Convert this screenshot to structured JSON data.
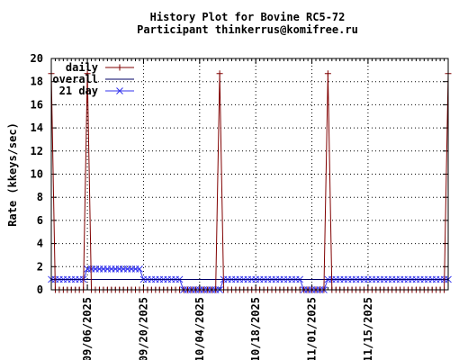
{
  "chart_data": {
    "type": "line",
    "title": "History Plot for Bovine RC5-72",
    "subtitle": "Participant thinkerrus@komifree.ru",
    "ylabel": "Rate (kkeys/sec)",
    "xlabel": "",
    "x_scale": "date",
    "xlim": [
      "2025-08-28",
      "2025-12-05"
    ],
    "ylim": [
      0,
      20
    ],
    "grid": true,
    "grid_style": "dotted",
    "legend_position": "top-left",
    "y_ticks": [
      0,
      2,
      4,
      6,
      8,
      10,
      12,
      14,
      16,
      18,
      20
    ],
    "x_ticks": [
      "09/06/2025",
      "09/20/2025",
      "10/04/2025",
      "10/18/2025",
      "11/01/2025",
      "11/15/2025"
    ],
    "x_tick_dates": [
      "2025-09-06",
      "2025-09-20",
      "2025-10-04",
      "2025-10-18",
      "2025-11-01",
      "2025-11-15"
    ],
    "series": [
      {
        "name": "daily",
        "color": "#800000",
        "marker": "plus",
        "x": [
          "2025-08-28",
          "2025-08-29",
          "2025-08-30",
          "2025-08-31",
          "2025-09-01",
          "2025-09-02",
          "2025-09-03",
          "2025-09-04",
          "2025-09-05",
          "2025-09-06",
          "2025-09-07",
          "2025-09-08",
          "2025-09-09",
          "2025-09-10",
          "2025-09-11",
          "2025-09-12",
          "2025-09-13",
          "2025-09-14",
          "2025-09-15",
          "2025-09-16",
          "2025-09-17",
          "2025-09-18",
          "2025-09-19",
          "2025-09-20",
          "2025-09-21",
          "2025-09-22",
          "2025-09-23",
          "2025-09-24",
          "2025-09-25",
          "2025-09-26",
          "2025-09-27",
          "2025-09-28",
          "2025-09-29",
          "2025-09-30",
          "2025-10-01",
          "2025-10-02",
          "2025-10-03",
          "2025-10-04",
          "2025-10-05",
          "2025-10-06",
          "2025-10-07",
          "2025-10-08",
          "2025-10-09",
          "2025-10-10",
          "2025-10-11",
          "2025-10-12",
          "2025-10-13",
          "2025-10-14",
          "2025-10-15",
          "2025-10-16",
          "2025-10-17",
          "2025-10-18",
          "2025-10-19",
          "2025-10-20",
          "2025-10-21",
          "2025-10-22",
          "2025-10-23",
          "2025-10-24",
          "2025-10-25",
          "2025-10-26",
          "2025-10-27",
          "2025-10-28",
          "2025-10-29",
          "2025-10-30",
          "2025-10-31",
          "2025-11-01",
          "2025-11-02",
          "2025-11-03",
          "2025-11-04",
          "2025-11-05",
          "2025-11-06",
          "2025-11-07",
          "2025-11-08",
          "2025-11-09",
          "2025-11-10",
          "2025-11-11",
          "2025-11-12",
          "2025-11-13",
          "2025-11-14",
          "2025-11-15",
          "2025-11-16",
          "2025-11-17",
          "2025-11-18",
          "2025-11-19",
          "2025-11-20",
          "2025-11-21",
          "2025-11-22",
          "2025-11-23",
          "2025-11-24",
          "2025-11-25",
          "2025-11-26",
          "2025-11-27",
          "2025-11-28",
          "2025-11-29",
          "2025-11-30",
          "2025-12-01",
          "2025-12-02",
          "2025-12-03",
          "2025-12-04",
          "2025-12-05"
        ],
        "values": [
          18.7,
          0,
          0,
          0,
          0,
          0,
          0,
          0,
          0,
          18.7,
          0,
          0,
          0,
          0,
          0,
          0,
          0,
          0,
          0,
          0,
          0,
          0,
          0,
          0,
          0,
          0,
          0,
          0,
          0,
          0,
          0,
          0,
          0,
          0,
          0,
          0,
          0,
          0,
          0,
          0,
          0,
          0,
          18.7,
          0,
          0,
          0,
          0,
          0,
          0,
          0,
          0,
          0,
          0,
          0,
          0,
          0,
          0,
          0,
          0,
          0,
          0,
          0,
          0,
          0,
          0,
          0,
          0,
          0,
          0,
          18.7,
          0,
          0,
          0,
          0,
          0,
          0,
          0,
          0,
          0,
          0,
          0,
          0,
          0,
          0,
          0,
          0,
          0,
          0,
          0,
          0,
          0,
          0,
          0,
          0,
          0,
          0,
          0,
          0,
          0,
          18.7
        ]
      },
      {
        "name": "overall",
        "color": "#000066",
        "marker": "none",
        "x": [
          "2025-08-28",
          "2025-12-05"
        ],
        "values": [
          0.9,
          0.9
        ]
      },
      {
        "name": "21 day",
        "color": "#3333ee",
        "marker": "x",
        "x": [
          "2025-08-28",
          "2025-08-29",
          "2025-08-30",
          "2025-08-31",
          "2025-09-01",
          "2025-09-02",
          "2025-09-03",
          "2025-09-04",
          "2025-09-05",
          "2025-09-06",
          "2025-09-07",
          "2025-09-08",
          "2025-09-09",
          "2025-09-10",
          "2025-09-11",
          "2025-09-12",
          "2025-09-13",
          "2025-09-14",
          "2025-09-15",
          "2025-09-16",
          "2025-09-17",
          "2025-09-18",
          "2025-09-19",
          "2025-09-20",
          "2025-09-21",
          "2025-09-22",
          "2025-09-23",
          "2025-09-24",
          "2025-09-25",
          "2025-09-26",
          "2025-09-27",
          "2025-09-28",
          "2025-09-29",
          "2025-09-30",
          "2025-10-01",
          "2025-10-02",
          "2025-10-03",
          "2025-10-04",
          "2025-10-05",
          "2025-10-06",
          "2025-10-07",
          "2025-10-08",
          "2025-10-09",
          "2025-10-10",
          "2025-10-11",
          "2025-10-12",
          "2025-10-13",
          "2025-10-14",
          "2025-10-15",
          "2025-10-16",
          "2025-10-17",
          "2025-10-18",
          "2025-10-19",
          "2025-10-20",
          "2025-10-21",
          "2025-10-22",
          "2025-10-23",
          "2025-10-24",
          "2025-10-25",
          "2025-10-26",
          "2025-10-27",
          "2025-10-28",
          "2025-10-29",
          "2025-10-30",
          "2025-10-31",
          "2025-11-01",
          "2025-11-02",
          "2025-11-03",
          "2025-11-04",
          "2025-11-05",
          "2025-11-06",
          "2025-11-07",
          "2025-11-08",
          "2025-11-09",
          "2025-11-10",
          "2025-11-11",
          "2025-11-12",
          "2025-11-13",
          "2025-11-14",
          "2025-11-15",
          "2025-11-16",
          "2025-11-17",
          "2025-11-18",
          "2025-11-19",
          "2025-11-20",
          "2025-11-21",
          "2025-11-22",
          "2025-11-23",
          "2025-11-24",
          "2025-11-25",
          "2025-11-26",
          "2025-11-27",
          "2025-11-28",
          "2025-11-29",
          "2025-11-30",
          "2025-12-01",
          "2025-12-02",
          "2025-12-03",
          "2025-12-04",
          "2025-12-05"
        ],
        "values": [
          0.9,
          0.9,
          0.9,
          0.9,
          0.9,
          0.9,
          0.9,
          0.9,
          0.9,
          1.8,
          1.8,
          1.8,
          1.8,
          1.8,
          1.8,
          1.8,
          1.8,
          1.8,
          1.8,
          1.8,
          1.8,
          1.8,
          1.8,
          0.9,
          0.9,
          0.9,
          0.9,
          0.9,
          0.9,
          0.9,
          0.9,
          0.9,
          0.9,
          0,
          0,
          0,
          0,
          0,
          0,
          0,
          0,
          0,
          0,
          0.9,
          0.9,
          0.9,
          0.9,
          0.9,
          0.9,
          0.9,
          0.9,
          0.9,
          0.9,
          0.9,
          0.9,
          0.9,
          0.9,
          0.9,
          0.9,
          0.9,
          0.9,
          0.9,
          0.9,
          0,
          0,
          0,
          0,
          0,
          0,
          0.9,
          0.9,
          0.9,
          0.9,
          0.9,
          0.9,
          0.9,
          0.9,
          0.9,
          0.9,
          0.9,
          0.9,
          0.9,
          0.9,
          0.9,
          0.9,
          0.9,
          0.9,
          0.9,
          0.9,
          0.9,
          0.9,
          0.9,
          0.9,
          0.9,
          0.9,
          0.9,
          0.9,
          0.9,
          0.9,
          0.9
        ]
      }
    ]
  }
}
